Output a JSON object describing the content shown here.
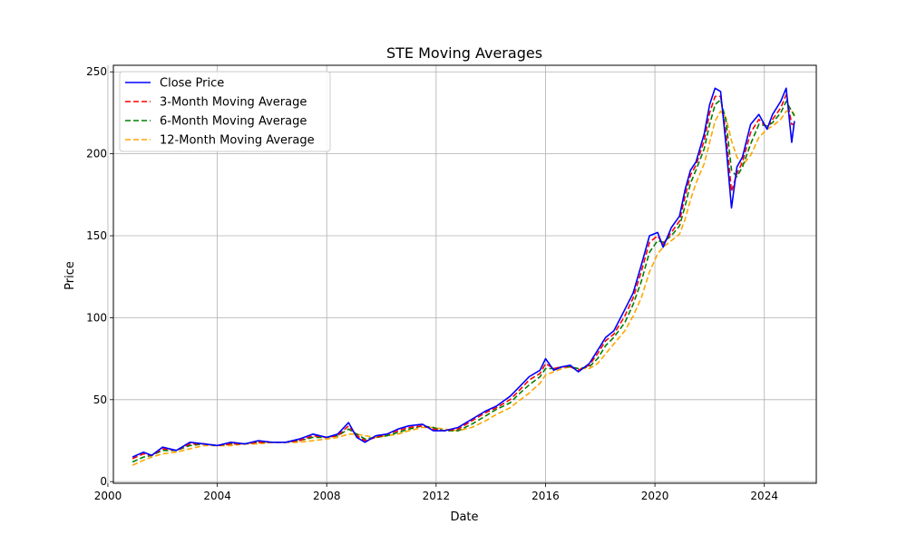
{
  "chart_data": {
    "type": "line",
    "title": "STE Moving Averages",
    "xlabel": "Date",
    "ylabel": "Price",
    "xlim": [
      2000.2,
      2025.9
    ],
    "ylim": [
      -1,
      254
    ],
    "x_ticks": [
      2000,
      2004,
      2008,
      2012,
      2016,
      2020,
      2024
    ],
    "y_ticks": [
      0,
      50,
      100,
      150,
      200,
      250
    ],
    "grid": true,
    "legend_position": "top-left",
    "series": [
      {
        "name": "Close Price",
        "color": "#0000ff",
        "dash": "solid",
        "points": [
          [
            2000.9,
            15
          ],
          [
            2001.3,
            18
          ],
          [
            2001.6,
            16
          ],
          [
            2002.0,
            21
          ],
          [
            2002.5,
            19
          ],
          [
            2003.0,
            24
          ],
          [
            2003.5,
            23
          ],
          [
            2004.0,
            22
          ],
          [
            2004.5,
            24
          ],
          [
            2005.0,
            23
          ],
          [
            2005.5,
            25
          ],
          [
            2006.0,
            24
          ],
          [
            2006.5,
            24
          ],
          [
            2007.0,
            26
          ],
          [
            2007.5,
            29
          ],
          [
            2008.0,
            27
          ],
          [
            2008.4,
            29
          ],
          [
            2008.8,
            36
          ],
          [
            2009.1,
            27
          ],
          [
            2009.4,
            24
          ],
          [
            2009.8,
            28
          ],
          [
            2010.2,
            29
          ],
          [
            2010.6,
            32
          ],
          [
            2011.0,
            34
          ],
          [
            2011.5,
            35
          ],
          [
            2011.9,
            31
          ],
          [
            2012.3,
            31
          ],
          [
            2012.8,
            33
          ],
          [
            2013.3,
            38
          ],
          [
            2013.8,
            43
          ],
          [
            2014.2,
            46
          ],
          [
            2014.7,
            52
          ],
          [
            2015.0,
            57
          ],
          [
            2015.4,
            64
          ],
          [
            2015.8,
            68
          ],
          [
            2016.0,
            75
          ],
          [
            2016.3,
            68
          ],
          [
            2016.6,
            70
          ],
          [
            2016.9,
            71
          ],
          [
            2017.2,
            67
          ],
          [
            2017.6,
            72
          ],
          [
            2017.9,
            80
          ],
          [
            2018.2,
            88
          ],
          [
            2018.5,
            92
          ],
          [
            2018.9,
            105
          ],
          [
            2019.2,
            115
          ],
          [
            2019.5,
            132
          ],
          [
            2019.8,
            150
          ],
          [
            2020.1,
            152
          ],
          [
            2020.3,
            143
          ],
          [
            2020.6,
            155
          ],
          [
            2020.9,
            162
          ],
          [
            2021.1,
            178
          ],
          [
            2021.3,
            190
          ],
          [
            2021.5,
            195
          ],
          [
            2021.8,
            212
          ],
          [
            2022.0,
            230
          ],
          [
            2022.2,
            240
          ],
          [
            2022.4,
            238
          ],
          [
            2022.6,
            205
          ],
          [
            2022.8,
            167
          ],
          [
            2023.0,
            192
          ],
          [
            2023.2,
            198
          ],
          [
            2023.5,
            218
          ],
          [
            2023.8,
            224
          ],
          [
            2024.1,
            215
          ],
          [
            2024.3,
            224
          ],
          [
            2024.6,
            232
          ],
          [
            2024.8,
            240
          ],
          [
            2025.0,
            207
          ],
          [
            2025.1,
            220
          ]
        ]
      },
      {
        "name": "3-Month Moving Average",
        "color": "#ff0000",
        "dash": "dashed",
        "points": [
          [
            2000.9,
            14
          ],
          [
            2001.3,
            17
          ],
          [
            2001.6,
            16
          ],
          [
            2002.0,
            20
          ],
          [
            2002.5,
            19
          ],
          [
            2003.0,
            23
          ],
          [
            2003.5,
            23
          ],
          [
            2004.0,
            22
          ],
          [
            2004.5,
            23
          ],
          [
            2005.0,
            23
          ],
          [
            2005.5,
            24
          ],
          [
            2006.0,
            24
          ],
          [
            2006.5,
            24
          ],
          [
            2007.0,
            25
          ],
          [
            2007.5,
            28
          ],
          [
            2008.0,
            27
          ],
          [
            2008.4,
            28
          ],
          [
            2008.8,
            34
          ],
          [
            2009.1,
            28
          ],
          [
            2009.4,
            25
          ],
          [
            2009.8,
            27
          ],
          [
            2010.2,
            29
          ],
          [
            2010.6,
            31
          ],
          [
            2011.0,
            33
          ],
          [
            2011.5,
            34
          ],
          [
            2011.9,
            32
          ],
          [
            2012.3,
            31
          ],
          [
            2012.8,
            32
          ],
          [
            2013.3,
            37
          ],
          [
            2013.8,
            42
          ],
          [
            2014.2,
            45
          ],
          [
            2014.7,
            50
          ],
          [
            2015.0,
            55
          ],
          [
            2015.4,
            62
          ],
          [
            2015.8,
            66
          ],
          [
            2016.0,
            72
          ],
          [
            2016.3,
            69
          ],
          [
            2016.6,
            70
          ],
          [
            2016.9,
            70
          ],
          [
            2017.2,
            68
          ],
          [
            2017.6,
            71
          ],
          [
            2017.9,
            78
          ],
          [
            2018.2,
            86
          ],
          [
            2018.5,
            90
          ],
          [
            2018.9,
            101
          ],
          [
            2019.2,
            112
          ],
          [
            2019.5,
            128
          ],
          [
            2019.8,
            146
          ],
          [
            2020.1,
            150
          ],
          [
            2020.3,
            145
          ],
          [
            2020.6,
            152
          ],
          [
            2020.9,
            159
          ],
          [
            2021.1,
            174
          ],
          [
            2021.3,
            187
          ],
          [
            2021.5,
            193
          ],
          [
            2021.8,
            208
          ],
          [
            2022.0,
            225
          ],
          [
            2022.2,
            235
          ],
          [
            2022.4,
            235
          ],
          [
            2022.6,
            212
          ],
          [
            2022.8,
            177
          ],
          [
            2023.0,
            188
          ],
          [
            2023.2,
            195
          ],
          [
            2023.5,
            213
          ],
          [
            2023.8,
            221
          ],
          [
            2024.1,
            216
          ],
          [
            2024.3,
            221
          ],
          [
            2024.6,
            228
          ],
          [
            2024.8,
            236
          ],
          [
            2025.0,
            218
          ],
          [
            2025.1,
            218
          ]
        ]
      },
      {
        "name": "6-Month Moving Average",
        "color": "#008000",
        "dash": "dashed",
        "points": [
          [
            2000.9,
            12
          ],
          [
            2001.3,
            15
          ],
          [
            2001.6,
            16
          ],
          [
            2002.0,
            19
          ],
          [
            2002.5,
            19
          ],
          [
            2003.0,
            22
          ],
          [
            2003.5,
            23
          ],
          [
            2004.0,
            22
          ],
          [
            2004.5,
            23
          ],
          [
            2005.0,
            23
          ],
          [
            2005.5,
            24
          ],
          [
            2006.0,
            24
          ],
          [
            2006.5,
            24
          ],
          [
            2007.0,
            25
          ],
          [
            2007.5,
            27
          ],
          [
            2008.0,
            27
          ],
          [
            2008.4,
            28
          ],
          [
            2008.8,
            32
          ],
          [
            2009.1,
            29
          ],
          [
            2009.4,
            26
          ],
          [
            2009.8,
            27
          ],
          [
            2010.2,
            28
          ],
          [
            2010.6,
            30
          ],
          [
            2011.0,
            32
          ],
          [
            2011.5,
            34
          ],
          [
            2011.9,
            33
          ],
          [
            2012.3,
            31
          ],
          [
            2012.8,
            31
          ],
          [
            2013.3,
            35
          ],
          [
            2013.8,
            40
          ],
          [
            2014.2,
            44
          ],
          [
            2014.7,
            48
          ],
          [
            2015.0,
            53
          ],
          [
            2015.4,
            59
          ],
          [
            2015.8,
            64
          ],
          [
            2016.0,
            69
          ],
          [
            2016.3,
            69
          ],
          [
            2016.6,
            70
          ],
          [
            2016.9,
            70
          ],
          [
            2017.2,
            69
          ],
          [
            2017.6,
            70
          ],
          [
            2017.9,
            75
          ],
          [
            2018.2,
            83
          ],
          [
            2018.5,
            88
          ],
          [
            2018.9,
            97
          ],
          [
            2019.2,
            108
          ],
          [
            2019.5,
            122
          ],
          [
            2019.8,
            140
          ],
          [
            2020.1,
            147
          ],
          [
            2020.3,
            146
          ],
          [
            2020.6,
            150
          ],
          [
            2020.9,
            156
          ],
          [
            2021.1,
            168
          ],
          [
            2021.3,
            182
          ],
          [
            2021.5,
            190
          ],
          [
            2021.8,
            203
          ],
          [
            2022.0,
            218
          ],
          [
            2022.2,
            230
          ],
          [
            2022.4,
            233
          ],
          [
            2022.6,
            220
          ],
          [
            2022.8,
            190
          ],
          [
            2023.0,
            186
          ],
          [
            2023.2,
            192
          ],
          [
            2023.5,
            206
          ],
          [
            2023.8,
            218
          ],
          [
            2024.1,
            217
          ],
          [
            2024.3,
            219
          ],
          [
            2024.6,
            225
          ],
          [
            2024.8,
            232
          ],
          [
            2025.0,
            226
          ],
          [
            2025.1,
            223
          ]
        ]
      },
      {
        "name": "12-Month Moving Average",
        "color": "#ffa500",
        "dash": "dashed",
        "points": [
          [
            2000.9,
            10
          ],
          [
            2001.3,
            13
          ],
          [
            2001.6,
            15
          ],
          [
            2002.0,
            17
          ],
          [
            2002.5,
            18
          ],
          [
            2003.0,
            20
          ],
          [
            2003.5,
            22
          ],
          [
            2004.0,
            22
          ],
          [
            2004.5,
            22
          ],
          [
            2005.0,
            23
          ],
          [
            2005.5,
            23
          ],
          [
            2006.0,
            24
          ],
          [
            2006.5,
            24
          ],
          [
            2007.0,
            24
          ],
          [
            2007.5,
            25
          ],
          [
            2008.0,
            26
          ],
          [
            2008.4,
            27
          ],
          [
            2008.8,
            29
          ],
          [
            2009.1,
            29
          ],
          [
            2009.4,
            28
          ],
          [
            2009.8,
            27
          ],
          [
            2010.2,
            28
          ],
          [
            2010.6,
            29
          ],
          [
            2011.0,
            31
          ],
          [
            2011.5,
            33
          ],
          [
            2011.9,
            33
          ],
          [
            2012.3,
            32
          ],
          [
            2012.8,
            31
          ],
          [
            2013.3,
            33
          ],
          [
            2013.8,
            37
          ],
          [
            2014.2,
            41
          ],
          [
            2014.7,
            45
          ],
          [
            2015.0,
            49
          ],
          [
            2015.4,
            54
          ],
          [
            2015.8,
            60
          ],
          [
            2016.0,
            65
          ],
          [
            2016.3,
            67
          ],
          [
            2016.6,
            69
          ],
          [
            2016.9,
            70
          ],
          [
            2017.2,
            69
          ],
          [
            2017.6,
            69
          ],
          [
            2017.9,
            72
          ],
          [
            2018.2,
            78
          ],
          [
            2018.5,
            84
          ],
          [
            2018.9,
            92
          ],
          [
            2019.2,
            101
          ],
          [
            2019.5,
            112
          ],
          [
            2019.8,
            128
          ],
          [
            2020.1,
            139
          ],
          [
            2020.3,
            143
          ],
          [
            2020.6,
            147
          ],
          [
            2020.9,
            151
          ],
          [
            2021.1,
            160
          ],
          [
            2021.3,
            172
          ],
          [
            2021.5,
            182
          ],
          [
            2021.8,
            194
          ],
          [
            2022.0,
            207
          ],
          [
            2022.2,
            220
          ],
          [
            2022.4,
            226
          ],
          [
            2022.6,
            222
          ],
          [
            2022.8,
            208
          ],
          [
            2023.0,
            198
          ],
          [
            2023.2,
            193
          ],
          [
            2023.5,
            199
          ],
          [
            2023.8,
            210
          ],
          [
            2024.1,
            215
          ],
          [
            2024.3,
            217
          ],
          [
            2024.6,
            221
          ],
          [
            2024.8,
            226
          ],
          [
            2025.0,
            226
          ],
          [
            2025.1,
            224
          ]
        ]
      }
    ]
  }
}
